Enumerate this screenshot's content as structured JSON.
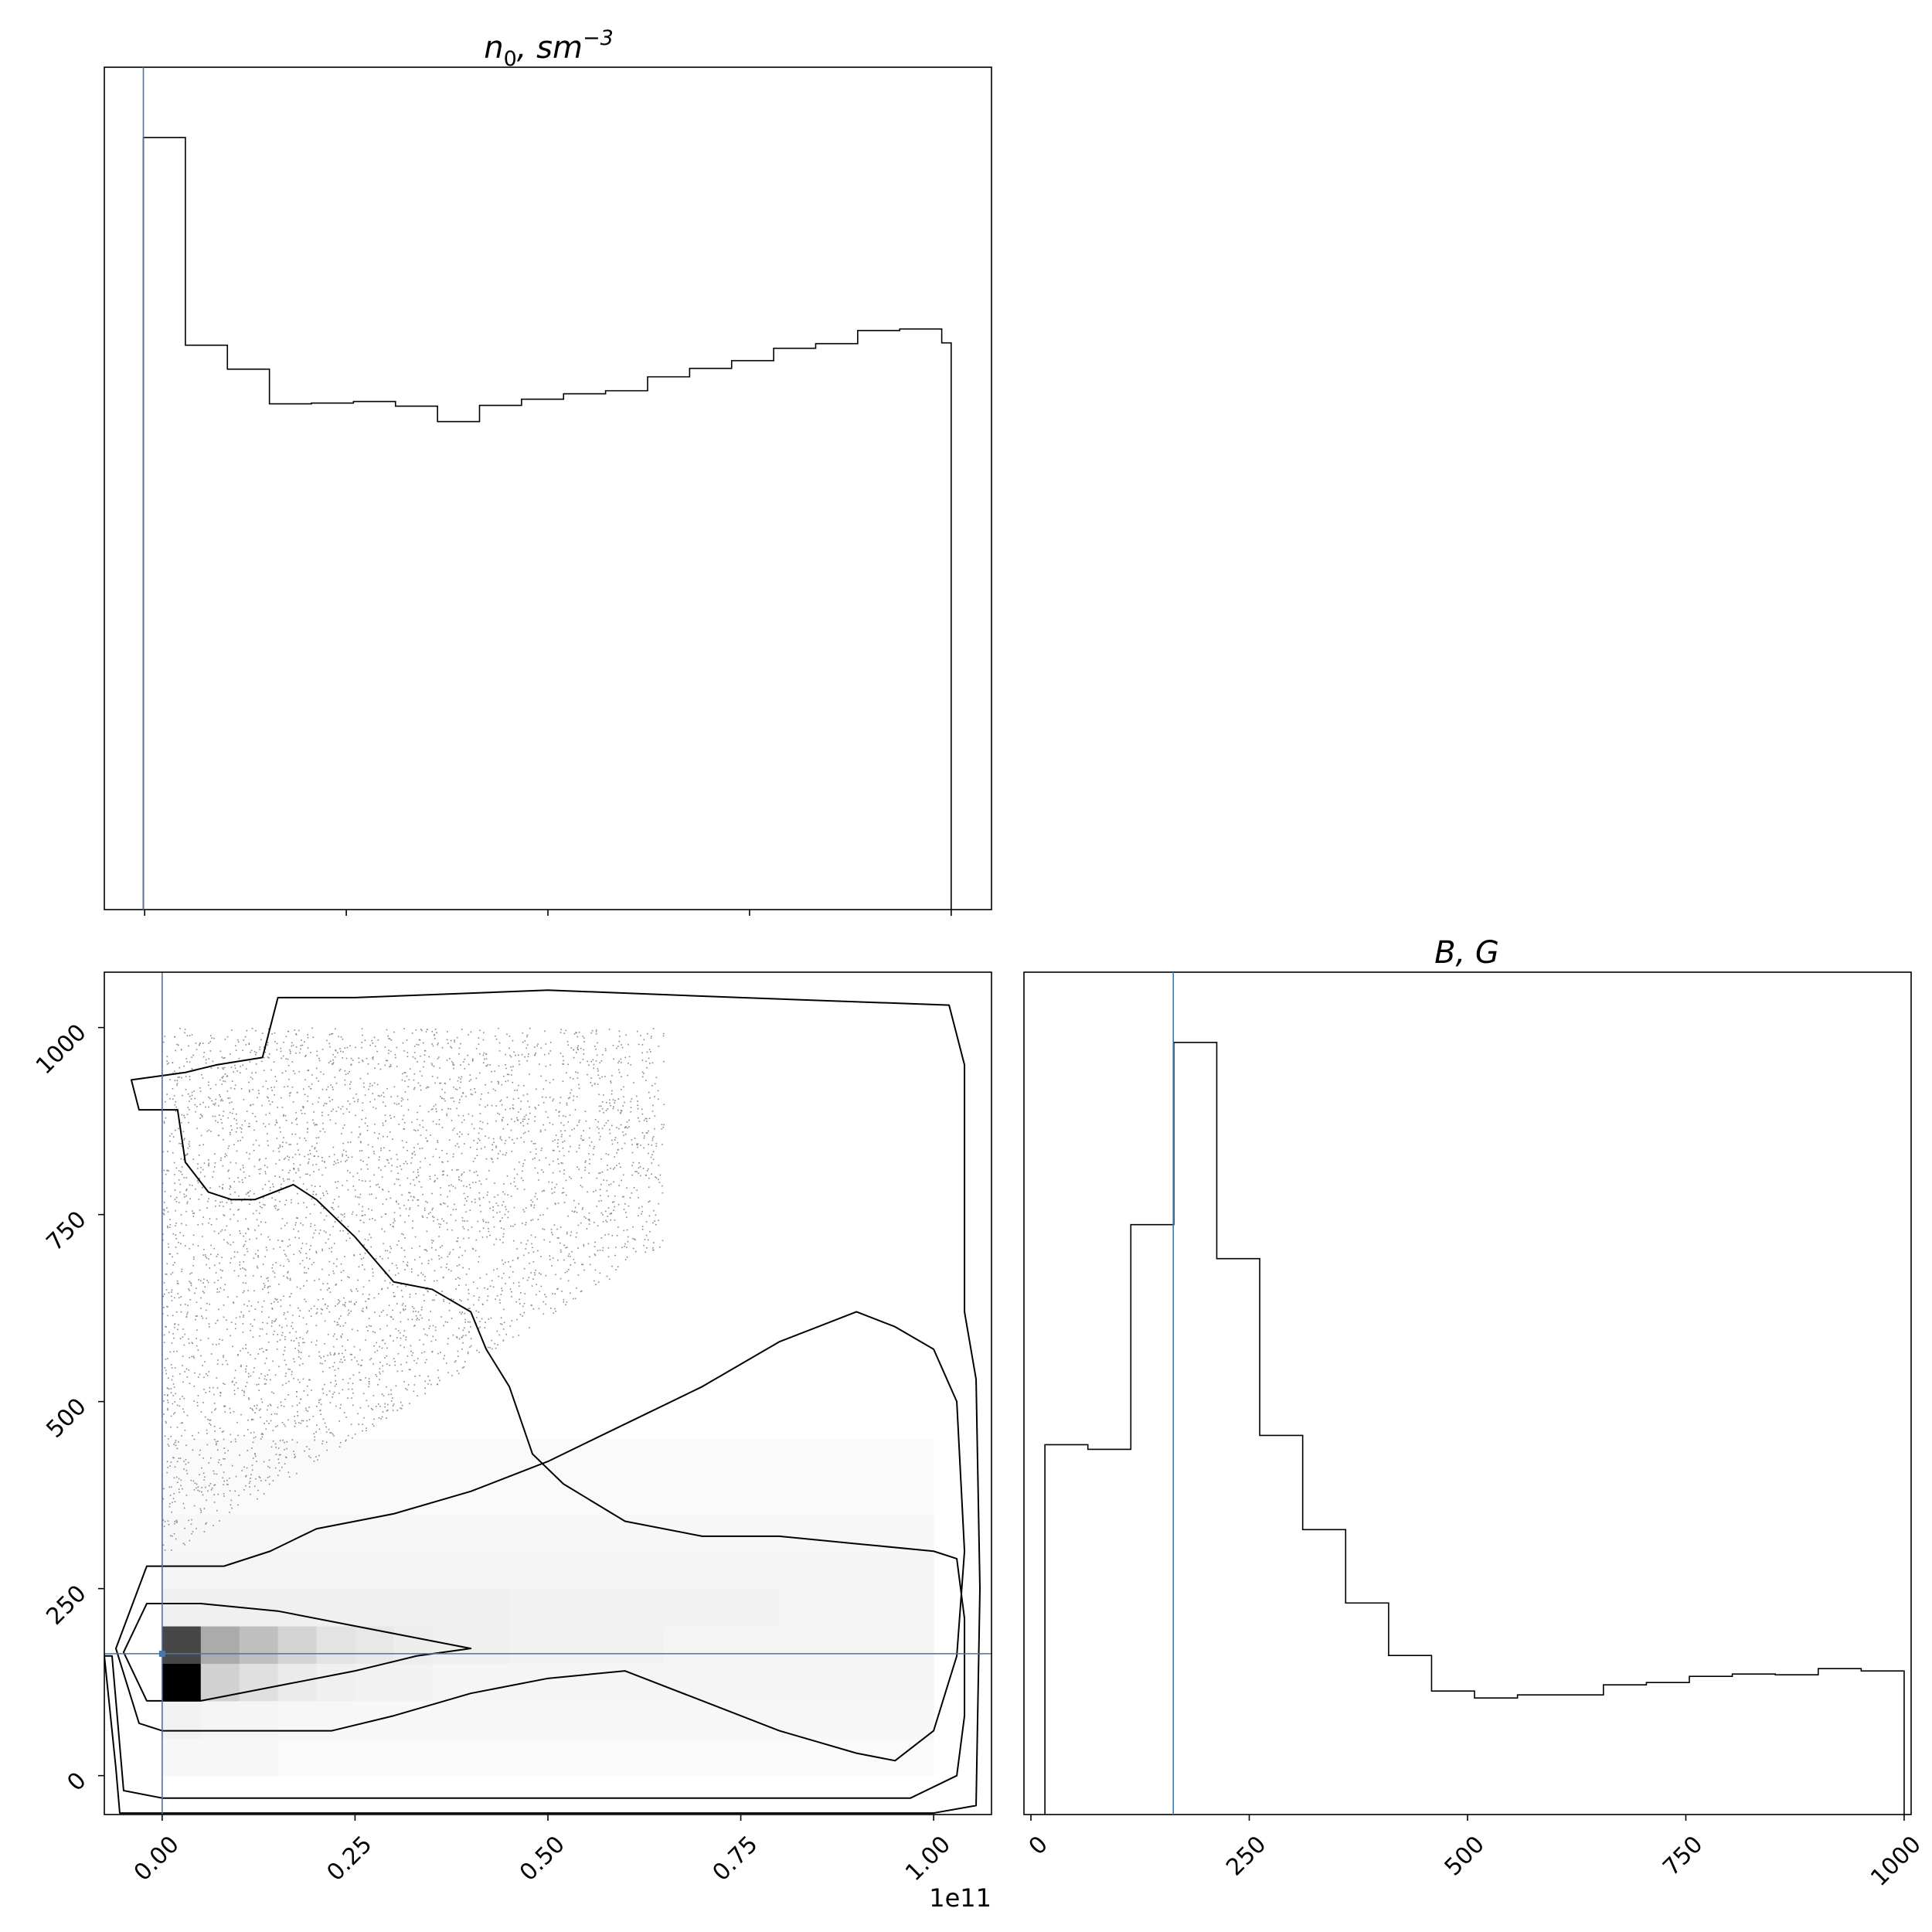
{
  "chart_data": [
    {
      "type": "histogram",
      "title_parts": {
        "base": "n",
        "sub": "0",
        "rest": ", sm",
        "sup": "−3"
      },
      "title": "n0, sm^-3",
      "xlim": [
        -0.05,
        1.05
      ],
      "x_scale_note": "1e11",
      "bin_edges": [
        -0.0016,
        0.0505,
        0.1026,
        0.1547,
        0.2068,
        0.2589,
        0.311,
        0.3631,
        0.4152,
        0.4673,
        0.5194,
        0.5715,
        0.6236,
        0.6757,
        0.7278,
        0.7799,
        0.832,
        0.8841,
        0.9362,
        0.9883,
        1.0
      ],
      "counts": [
        1000,
        731,
        700,
        655,
        656,
        658,
        652,
        632,
        653,
        661,
        668,
        672,
        690,
        701,
        711,
        727,
        733,
        750,
        752,
        734
      ],
      "ylim": [
        0,
        1091
      ],
      "truth_x": -0.0016,
      "tick_positions": [
        0.0,
        0.25,
        0.5,
        0.75,
        1.0
      ]
    },
    {
      "type": "histogram",
      "title_parts": {
        "base": "B, G"
      },
      "title": "B, G",
      "xlim": [
        -8,
        1008
      ],
      "bin_edges": [
        16,
        65.2,
        114.4,
        163.6,
        212.8,
        262,
        311.2,
        360.4,
        409.6,
        458.8,
        508,
        557.2,
        606.4,
        655.6,
        704.8,
        754,
        803.2,
        852.4,
        901.6,
        950.8,
        1000
      ],
      "counts": [
        479,
        473,
        764,
        1000,
        720,
        491,
        369,
        274,
        206,
        160,
        151,
        155,
        155,
        168,
        171,
        179,
        182,
        181,
        189,
        186
      ],
      "ylim": [
        0,
        1091
      ],
      "truth_x": 163,
      "tick_labels": [
        "0",
        "250",
        "500",
        "750",
        "1000"
      ],
      "tick_values": [
        0,
        250,
        500,
        750,
        1000
      ]
    },
    {
      "type": "heatmap",
      "subtype": "2d-histogram-with-contours",
      "xlim": [
        -0.075,
        1.075
      ],
      "ylim": [
        -52,
        1074
      ],
      "x_tick_labels": [
        "0.00",
        "0.25",
        "0.50",
        "0.75",
        "1.00"
      ],
      "x_tick_values": [
        0,
        0.25,
        0.5,
        0.75,
        1.0
      ],
      "y_tick_labels": [
        "0",
        "250",
        "500",
        "750",
        "1000"
      ],
      "y_tick_values": [
        0,
        250,
        500,
        750,
        1000
      ],
      "x_offset_label": "1e11",
      "truth": {
        "x": 0.0,
        "y": 163
      },
      "x_bin_edges": [
        0.0,
        0.05,
        0.1,
        0.15,
        0.2,
        0.25,
        0.3,
        0.35,
        0.4,
        0.45,
        0.5,
        0.55,
        0.6,
        0.65,
        0.7,
        0.75,
        0.8,
        0.85,
        0.9,
        0.95,
        1.0
      ],
      "y_bin_edges": [
        0,
        50,
        100,
        150,
        200,
        250,
        300,
        350,
        400,
        450
      ],
      "density_rows_from_bottom": [
        [
          0.03,
          0.03,
          0.03,
          0.02,
          0.02,
          0.02,
          0.02,
          0.02,
          0.02,
          0.02,
          0.02,
          0.02,
          0.02,
          0.02,
          0.02,
          0.02,
          0.02,
          0.02,
          0.02,
          0.02
        ],
        [
          0.05,
          0.04,
          0.04,
          0.03,
          0.03,
          0.03,
          0.03,
          0.03,
          0.03,
          0.03,
          0.03,
          0.03,
          0.03,
          0.03,
          0.03,
          0.03,
          0.03,
          0.03,
          0.03,
          0.03
        ],
        [
          1.0,
          0.18,
          0.12,
          0.08,
          0.06,
          0.05,
          0.05,
          0.04,
          0.04,
          0.04,
          0.04,
          0.04,
          0.04,
          0.04,
          0.04,
          0.04,
          0.04,
          0.04,
          0.04,
          0.04
        ],
        [
          0.72,
          0.33,
          0.25,
          0.17,
          0.11,
          0.09,
          0.07,
          0.06,
          0.06,
          0.05,
          0.05,
          0.05,
          0.05,
          0.04,
          0.04,
          0.04,
          0.04,
          0.04,
          0.04,
          0.04
        ],
        [
          0.06,
          0.06,
          0.06,
          0.06,
          0.06,
          0.06,
          0.06,
          0.06,
          0.06,
          0.05,
          0.05,
          0.05,
          0.05,
          0.05,
          0.05,
          0.05,
          0.04,
          0.04,
          0.04,
          0.04
        ],
        [
          0.04,
          0.04,
          0.04,
          0.04,
          0.04,
          0.04,
          0.04,
          0.04,
          0.04,
          0.04,
          0.04,
          0.04,
          0.04,
          0.04,
          0.04,
          0.04,
          0.04,
          0.04,
          0.04,
          0.04
        ],
        [
          0.03,
          0.03,
          0.03,
          0.03,
          0.03,
          0.03,
          0.03,
          0.03,
          0.03,
          0.03,
          0.03,
          0.03,
          0.03,
          0.03,
          0.03,
          0.03,
          0.03,
          0.03,
          0.03,
          0.03
        ],
        [
          0.02,
          0.02,
          0.02,
          0.02,
          0.02,
          0.02,
          0.02,
          0.02,
          0.02,
          0.02,
          0.02,
          0.02,
          0.02,
          0.02,
          0.02,
          0.02,
          0.02,
          0.02,
          0.02,
          0.02
        ],
        [
          0.02,
          0.02,
          0.02,
          0.02,
          0.02,
          0.02,
          0.02,
          0.02,
          0.02,
          0.02,
          0.02,
          0.02,
          0.02,
          0.02,
          0.02,
          0.02,
          0.02,
          0.02,
          0.02,
          0.02
        ]
      ],
      "scatter_region": {
        "x_range": [
          0.0,
          0.65
        ],
        "y_range": [
          290,
          1000
        ],
        "shade": "gray"
      },
      "contours": [
        {
          "level": "outer",
          "points": [
            [
              -0.075,
              160
            ],
            [
              -0.06,
              10
            ],
            [
              -0.055,
              -50
            ],
            [
              0.5,
              -50
            ],
            [
              1.0,
              -50
            ],
            [
              1.055,
              -40
            ],
            [
              1.06,
              250
            ],
            [
              1.055,
              530
            ],
            [
              1.04,
              620
            ],
            [
              1.04,
              950
            ],
            [
              1.02,
              1030
            ],
            [
              0.75,
              1040
            ],
            [
              0.5,
              1050
            ],
            [
              0.25,
              1040
            ],
            [
              0.15,
              1040
            ],
            [
              0.13,
              960
            ],
            [
              0.07,
              950
            ],
            [
              0.03,
              940
            ],
            [
              -0.04,
              930
            ],
            [
              -0.03,
              890
            ],
            [
              0.02,
              890
            ],
            [
              0.03,
              820
            ],
            [
              0.06,
              780
            ],
            [
              0.09,
              770
            ],
            [
              0.12,
              770
            ],
            [
              0.17,
              790
            ],
            [
              0.2,
              770
            ],
            [
              0.25,
              720
            ],
            [
              0.3,
              660
            ],
            [
              0.35,
              650
            ],
            [
              0.4,
              620
            ],
            [
              0.42,
              570
            ],
            [
              0.45,
              520
            ],
            [
              0.48,
              430
            ],
            [
              0.52,
              390
            ],
            [
              0.6,
              340
            ],
            [
              0.7,
              320
            ],
            [
              0.8,
              320
            ],
            [
              0.9,
              310
            ],
            [
              1.0,
              300
            ],
            [
              1.03,
              290
            ],
            [
              1.04,
              210
            ],
            [
              1.04,
              80
            ],
            [
              1.03,
              0
            ],
            [
              0.97,
              -30
            ],
            [
              0.5,
              -30
            ],
            [
              0.0,
              -30
            ],
            [
              -0.05,
              -20
            ],
            [
              -0.065,
              160
            ],
            [
              -0.075,
              160
            ]
          ]
        },
        {
          "level": "mid",
          "points": [
            [
              -0.06,
              170
            ],
            [
              -0.02,
              280
            ],
            [
              0.08,
              280
            ],
            [
              0.14,
              300
            ],
            [
              0.2,
              330
            ],
            [
              0.3,
              350
            ],
            [
              0.4,
              380
            ],
            [
              0.5,
              420
            ],
            [
              0.6,
              470
            ],
            [
              0.7,
              520
            ],
            [
              0.8,
              580
            ],
            [
              0.9,
              620
            ],
            [
              0.95,
              600
            ],
            [
              1.0,
              570
            ],
            [
              1.03,
              500
            ],
            [
              1.04,
              300
            ],
            [
              1.03,
              160
            ],
            [
              1.0,
              60
            ],
            [
              0.95,
              20
            ],
            [
              0.9,
              30
            ],
            [
              0.8,
              60
            ],
            [
              0.7,
              100
            ],
            [
              0.6,
              140
            ],
            [
              0.5,
              130
            ],
            [
              0.4,
              110
            ],
            [
              0.3,
              80
            ],
            [
              0.22,
              60
            ],
            [
              0.1,
              60
            ],
            [
              0.0,
              60
            ],
            [
              -0.03,
              70
            ],
            [
              -0.06,
              170
            ]
          ]
        },
        {
          "level": "inner",
          "points": [
            [
              -0.05,
              165
            ],
            [
              -0.02,
              230
            ],
            [
              0.05,
              230
            ],
            [
              0.15,
              220
            ],
            [
              0.3,
              190
            ],
            [
              0.4,
              170
            ],
            [
              0.33,
              160
            ],
            [
              0.25,
              140
            ],
            [
              0.15,
              120
            ],
            [
              0.05,
              100
            ],
            [
              -0.02,
              100
            ],
            [
              -0.05,
              165
            ]
          ]
        }
      ]
    }
  ],
  "labels": {
    "offset_text": "1e11"
  }
}
